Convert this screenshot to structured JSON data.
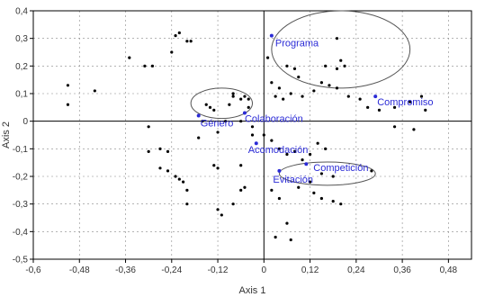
{
  "chart_data": {
    "type": "scatter",
    "xlabel": "Axis 1",
    "ylabel": "Axis 2",
    "xlim": [
      -0.6,
      0.54
    ],
    "ylim": [
      -0.5,
      0.4
    ],
    "x_ticks": [
      -0.6,
      -0.48,
      -0.36,
      -0.24,
      -0.12,
      0,
      0.12,
      0.24,
      0.36,
      0.48
    ],
    "x_tick_labels": [
      "-0,6",
      "-0,48",
      "-0,36",
      "-0,24",
      "-0,12",
      "0",
      "0,12",
      "0,24",
      "0,36",
      "0,48"
    ],
    "y_ticks": [
      0.4,
      0.3,
      0.2,
      0.1,
      0,
      -0.1,
      -0.2,
      -0.3,
      -0.4,
      -0.5
    ],
    "y_tick_labels": [
      "0,4",
      "0,3",
      "0,2",
      "0,1",
      "0",
      "-0,1",
      "-0,2",
      "-0,3",
      "-0,4",
      "-0,5"
    ],
    "grid": true,
    "colors": {
      "points": "#000000",
      "labeled_points": "#2b2bd6",
      "ellipse": "#555555",
      "grid": "#888888"
    },
    "labeled_points": [
      {
        "label": "Programa",
        "x": 0.02,
        "y": 0.31
      },
      {
        "label": "Compromiso",
        "x": 0.29,
        "y": 0.09
      },
      {
        "label": "Género",
        "x": -0.17,
        "y": 0.02
      },
      {
        "label": "Colaboración",
        "x": -0.05,
        "y": 0.03
      },
      {
        "label": "Acomodación",
        "x": -0.02,
        "y": -0.08
      },
      {
        "label": "Competición",
        "x": 0.11,
        "y": -0.155
      },
      {
        "label": "Evitación",
        "x": 0.04,
        "y": -0.18
      }
    ],
    "ellipses": [
      {
        "cx": 0.2,
        "cy": 0.26,
        "rx": 0.18,
        "ry": 0.14
      },
      {
        "cx": -0.11,
        "cy": 0.065,
        "rx": 0.08,
        "ry": 0.055
      },
      {
        "cx": 0.165,
        "cy": -0.19,
        "rx": 0.125,
        "ry": 0.042
      }
    ],
    "points": [
      [
        -0.51,
        0.13
      ],
      [
        -0.51,
        0.06
      ],
      [
        -0.44,
        0.11
      ],
      [
        -0.35,
        0.23
      ],
      [
        -0.31,
        0.2
      ],
      [
        -0.29,
        0.2
      ],
      [
        -0.24,
        0.25
      ],
      [
        -0.23,
        0.31
      ],
      [
        -0.22,
        0.32
      ],
      [
        -0.2,
        0.29
      ],
      [
        -0.19,
        0.29
      ],
      [
        -0.15,
        0.06
      ],
      [
        -0.14,
        0.05
      ],
      [
        -0.13,
        0.04
      ],
      [
        -0.16,
        0.0
      ],
      [
        -0.17,
        -0.06
      ],
      [
        -0.12,
        -0.04
      ],
      [
        -0.1,
        0.0
      ],
      [
        -0.09,
        0.06
      ],
      [
        -0.08,
        0.09
      ],
      [
        -0.08,
        0.1
      ],
      [
        -0.06,
        0.08
      ],
      [
        -0.05,
        0.09
      ],
      [
        -0.04,
        0.08
      ],
      [
        -0.04,
        0.05
      ],
      [
        -0.06,
        0.0
      ],
      [
        -0.03,
        -0.02
      ],
      [
        -0.03,
        -0.05
      ],
      [
        -0.3,
        -0.11
      ],
      [
        -0.3,
        -0.02
      ],
      [
        -0.27,
        -0.1
      ],
      [
        -0.25,
        -0.11
      ],
      [
        -0.27,
        -0.17
      ],
      [
        -0.25,
        -0.18
      ],
      [
        -0.23,
        -0.2
      ],
      [
        -0.22,
        -0.21
      ],
      [
        -0.21,
        -0.22
      ],
      [
        -0.2,
        -0.25
      ],
      [
        -0.2,
        -0.3
      ],
      [
        -0.13,
        -0.16
      ],
      [
        -0.12,
        -0.17
      ],
      [
        -0.06,
        -0.16
      ],
      [
        -0.06,
        -0.25
      ],
      [
        -0.05,
        -0.24
      ],
      [
        -0.08,
        -0.3
      ],
      [
        -0.12,
        -0.32
      ],
      [
        -0.11,
        -0.34
      ],
      [
        0.01,
        0.23
      ],
      [
        0.02,
        0.14
      ],
      [
        0.04,
        0.12
      ],
      [
        0.03,
        0.09
      ],
      [
        0.05,
        0.08
      ],
      [
        0.06,
        0.2
      ],
      [
        0.08,
        0.19
      ],
      [
        0.09,
        0.16
      ],
      [
        0.07,
        0.1
      ],
      [
        0.1,
        0.09
      ],
      [
        0.13,
        0.11
      ],
      [
        0.15,
        0.14
      ],
      [
        0.17,
        0.13
      ],
      [
        0.19,
        0.12
      ],
      [
        0.16,
        0.2
      ],
      [
        0.19,
        0.19
      ],
      [
        0.21,
        0.2
      ],
      [
        0.19,
        0.3
      ],
      [
        0.2,
        0.22
      ],
      [
        0.22,
        0.09
      ],
      [
        0.25,
        0.08
      ],
      [
        0.27,
        0.05
      ],
      [
        0.3,
        0.04
      ],
      [
        0.34,
        0.05
      ],
      [
        0.38,
        0.07
      ],
      [
        0.41,
        0.09
      ],
      [
        0.42,
        0.04
      ],
      [
        0.39,
        -0.03
      ],
      [
        0.34,
        -0.02
      ],
      [
        0.0,
        -0.05
      ],
      [
        0.02,
        -0.07
      ],
      [
        0.04,
        -0.1
      ],
      [
        0.06,
        -0.12
      ],
      [
        0.08,
        -0.11
      ],
      [
        0.1,
        -0.14
      ],
      [
        0.12,
        -0.12
      ],
      [
        0.14,
        -0.08
      ],
      [
        0.16,
        -0.1
      ],
      [
        0.15,
        -0.19
      ],
      [
        0.18,
        -0.2
      ],
      [
        0.12,
        -0.22
      ],
      [
        0.09,
        -0.24
      ],
      [
        0.13,
        -0.26
      ],
      [
        0.15,
        -0.28
      ],
      [
        0.18,
        -0.29
      ],
      [
        0.2,
        -0.3
      ],
      [
        0.28,
        -0.18
      ],
      [
        0.04,
        -0.28
      ],
      [
        0.06,
        -0.37
      ],
      [
        0.03,
        -0.42
      ],
      [
        0.07,
        -0.43
      ],
      [
        0.02,
        -0.25
      ]
    ]
  }
}
